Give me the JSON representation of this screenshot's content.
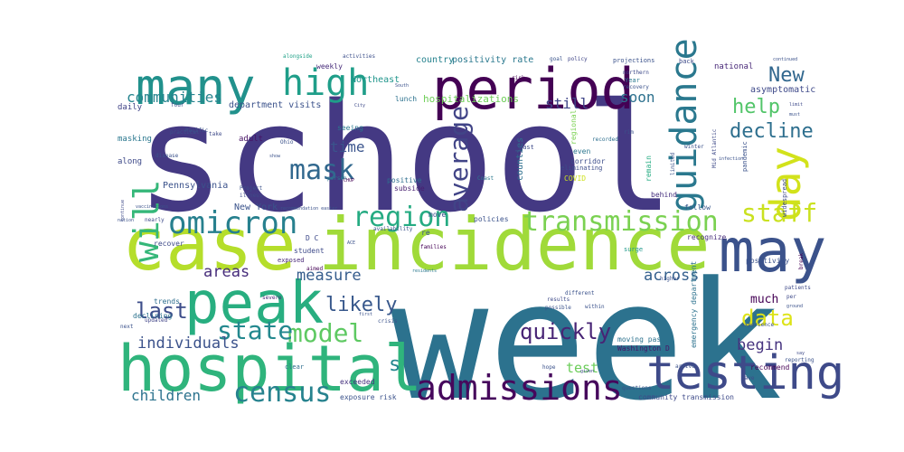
{
  "words": [
    {
      "text": "school",
      "color": "#443983"
    },
    {
      "text": "week",
      "color": "#2c728e"
    },
    {
      "text": "case",
      "color": "#b5de2b"
    },
    {
      "text": "incidence",
      "color": "#a0da39"
    },
    {
      "text": "hospital",
      "color": "#2fb47c"
    },
    {
      "text": "peak",
      "color": "#28ae80"
    },
    {
      "text": "period",
      "color": "#440154"
    },
    {
      "text": "many",
      "color": "#21918c"
    },
    {
      "text": "may",
      "color": "#3b528b"
    },
    {
      "text": "testing",
      "color": "#3e4a89"
    },
    {
      "text": "admissions",
      "color": "#46085c"
    },
    {
      "text": "transmission",
      "color": "#7ad151"
    },
    {
      "text": "guidance",
      "color": "#2a788e"
    },
    {
      "text": "will",
      "color": "#35b779"
    },
    {
      "text": "omicron",
      "color": "#27808e"
    },
    {
      "text": "high",
      "color": "#1f9e89"
    },
    {
      "text": "day",
      "color": "#d2e21b"
    },
    {
      "text": "mask",
      "color": "#31688e"
    },
    {
      "text": "average",
      "color": "#414487"
    },
    {
      "text": "region",
      "color": "#25ab82"
    },
    {
      "text": "census",
      "color": "#26828e"
    },
    {
      "text": "model",
      "color": "#5ec962"
    },
    {
      "text": "state",
      "color": "#23888e"
    },
    {
      "text": "staff",
      "color": "#cae11f"
    },
    {
      "text": "last",
      "color": "#3d4d8a"
    },
    {
      "text": "likely",
      "color": "#38588c"
    },
    {
      "text": "data",
      "color": "#dde318"
    },
    {
      "text": "New",
      "color": "#31678e"
    },
    {
      "text": "help",
      "color": "#52c569"
    },
    {
      "text": "decline",
      "color": "#2e6f8e"
    },
    {
      "text": "communities",
      "color": "#25848e"
    },
    {
      "text": "quickly",
      "color": "#482475"
    },
    {
      "text": "time",
      "color": "#3a548c"
    },
    {
      "text": "soon",
      "color": "#2d718e"
    },
    {
      "text": "still",
      "color": "#404688"
    },
    {
      "text": "individuals",
      "color": "#3b528b"
    },
    {
      "text": "children",
      "color": "#2c738e"
    },
    {
      "text": "measure",
      "color": "#365d8d"
    },
    {
      "text": "areas",
      "color": "#472d7b"
    },
    {
      "text": "across",
      "color": "#34608d"
    },
    {
      "text": "begin",
      "color": "#46337f"
    },
    {
      "text": "test",
      "color": "#6ccd5a"
    },
    {
      "text": "s",
      "color": "#24868e"
    },
    {
      "text": "much",
      "color": "#440154"
    },
    {
      "text": "positivity rate",
      "color": "#2a788e"
    },
    {
      "text": "hospitalizations",
      "color": "#6ece58"
    },
    {
      "text": "country",
      "color": "#26828e"
    },
    {
      "text": "department visits",
      "color": "#3b528b"
    },
    {
      "text": "communities",
      "color": "#25848e"
    },
    {
      "text": "Northeast",
      "color": "#1f958b"
    },
    {
      "text": "weekly",
      "color": "#472c7a"
    },
    {
      "text": "alongside",
      "color": "#1fa187"
    },
    {
      "text": "activities",
      "color": "#3c4f8a"
    },
    {
      "text": "national",
      "color": "#482878"
    },
    {
      "text": "asymptomatic",
      "color": "#3e4989"
    },
    {
      "text": "Pennsylvania",
      "color": "#3b528b"
    },
    {
      "text": "New York",
      "color": "#3a538b"
    },
    {
      "text": "omicron",
      "color": "#27808e"
    },
    {
      "text": "masking",
      "color": "#2a778e"
    },
    {
      "text": "adult",
      "color": "#471365"
    },
    {
      "text": "daily",
      "color": "#414487"
    },
    {
      "text": "along",
      "color": "#3e4a89"
    },
    {
      "text": "positive",
      "color": "#2e6e8e"
    },
    {
      "text": "subside",
      "color": "#481f70"
    },
    {
      "text": "lunch",
      "color": "#2c728e"
    },
    {
      "text": "counties",
      "color": "#2e6f8e"
    },
    {
      "text": "regional",
      "color": "#7ad151"
    },
    {
      "text": "corridor",
      "color": "#3d4e8a"
    },
    {
      "text": "eliminating",
      "color": "#3d4d8a"
    },
    {
      "text": "even",
      "color": "#2b758e"
    },
    {
      "text": "COVID",
      "color": "#cde11d"
    },
    {
      "text": "behind",
      "color": "#46307e"
    },
    {
      "text": "remain",
      "color": "#25ac82"
    },
    {
      "text": "follow",
      "color": "#38588c"
    },
    {
      "text": "recognize",
      "color": "#472d7b"
    },
    {
      "text": "surge",
      "color": "#1f988b"
    },
    {
      "text": "positivity",
      "color": "#3b528b"
    },
    {
      "text": "recommend",
      "color": "#440154"
    },
    {
      "text": "community transmission",
      "color": "#3e4a89"
    },
    {
      "text": "exposure risk",
      "color": "#3b528b"
    },
    {
      "text": "exceeded",
      "color": "#46307e"
    },
    {
      "text": "student",
      "color": "#3e4a89"
    },
    {
      "text": "recover",
      "color": "#3e4a89"
    },
    {
      "text": "trends",
      "color": "#2e6e8e"
    },
    {
      "text": "declining",
      "color": "#2c728e"
    },
    {
      "text": "severe",
      "color": "#482878"
    },
    {
      "text": "updated",
      "color": "#414487"
    },
    {
      "text": "move",
      "color": "#3b528b"
    },
    {
      "text": "policies",
      "color": "#3b528b"
    },
    {
      "text": "re",
      "color": "#3a548c"
    },
    {
      "text": "moving past",
      "color": "#2c728e"
    },
    {
      "text": "Washington D",
      "color": "#481567"
    },
    {
      "text": "emergency department",
      "color": "#2c728e"
    },
    {
      "text": "seeing",
      "color": "#2a788e"
    },
    {
      "text": "past",
      "color": "#3e4a89"
    },
    {
      "text": "recorded",
      "color": "#2e6f8e"
    },
    {
      "text": "rim",
      "color": "#3b528b"
    },
    {
      "text": "goal",
      "color": "#3a548c"
    },
    {
      "text": "policy",
      "color": "#404688"
    },
    {
      "text": "projections",
      "color": "#3b528b"
    },
    {
      "text": "back",
      "color": "#3e4a89"
    },
    {
      "text": "northern",
      "color": "#3e4a89"
    },
    {
      "text": "recovery",
      "color": "#3b528b"
    },
    {
      "text": "Year",
      "color": "#2a788e"
    },
    {
      "text": "Mid Atlantic",
      "color": "#3e4a89"
    },
    {
      "text": "pandemic",
      "color": "#3b528b"
    },
    {
      "text": "widespread",
      "color": "#3e4a89"
    },
    {
      "text": "continued",
      "color": "#3b528b"
    },
    {
      "text": "risk",
      "color": "#440154"
    },
    {
      "text": "South",
      "color": "#3b528b"
    },
    {
      "text": "Coast",
      "color": "#2a788e"
    },
    {
      "text": "practical",
      "color": "#3b528b"
    },
    {
      "text": "four",
      "color": "#3e4a89"
    },
    {
      "text": "Ohio",
      "color": "#3b528b"
    },
    {
      "text": "City",
      "color": "#3e4a89"
    },
    {
      "text": "Pacific",
      "color": "#3b528b"
    },
    {
      "text": "take",
      "color": "#3e4a89"
    },
    {
      "text": "disease",
      "color": "#3b528b"
    },
    {
      "text": "show",
      "color": "#3b528b"
    },
    {
      "text": "Project",
      "color": "#3b528b"
    },
    {
      "text": "illness",
      "color": "#3e4a89"
    },
    {
      "text": "person",
      "color": "#2a788e"
    },
    {
      "text": "CHOP",
      "color": "#440154"
    },
    {
      "text": "recommendation easier",
      "color": "#3b528b"
    },
    {
      "text": "nearly",
      "color": "#3e4a89"
    },
    {
      "text": "nation",
      "color": "#3b528b"
    },
    {
      "text": "continue",
      "color": "#3e4a89"
    },
    {
      "text": "vaccinations",
      "color": "#3b528b"
    },
    {
      "text": "exposed",
      "color": "#482878"
    },
    {
      "text": "aimed",
      "color": "#440154"
    },
    {
      "text": "ACE",
      "color": "#3b528b"
    },
    {
      "text": "availability",
      "color": "#3b528b"
    },
    {
      "text": "families",
      "color": "#440154"
    },
    {
      "text": "residents",
      "color": "#2a788e"
    },
    {
      "text": "first",
      "color": "#3b528b"
    },
    {
      "text": "crisis",
      "color": "#3b528b"
    },
    {
      "text": "results",
      "color": "#3e4a89"
    },
    {
      "text": "possible",
      "color": "#3b528b"
    },
    {
      "text": "within",
      "color": "#3b528b"
    },
    {
      "text": "different",
      "color": "#3b528b"
    },
    {
      "text": "hope",
      "color": "#3b528b"
    },
    {
      "text": "given",
      "color": "#3e4a89"
    },
    {
      "text": "questions",
      "color": "#3b528b"
    },
    {
      "text": "clear",
      "color": "#2e6e8e"
    },
    {
      "text": "next",
      "color": "#3b528b"
    },
    {
      "text": "experience",
      "color": "#3b528b"
    },
    {
      "text": "patients",
      "color": "#3e4a89"
    },
    {
      "text": "ground",
      "color": "#3b528b"
    },
    {
      "text": "per",
      "color": "#3e4a89"
    },
    {
      "text": "break",
      "color": "#440154"
    },
    {
      "text": "arrive",
      "color": "#3b528b"
    },
    {
      "text": "wave",
      "color": "#3e4a89"
    },
    {
      "text": "higher",
      "color": "#3b528b"
    },
    {
      "text": "say",
      "color": "#3e4a89"
    },
    {
      "text": "reporting",
      "color": "#3b528b"
    },
    {
      "text": "winter",
      "color": "#3b528b"
    },
    {
      "text": "limited",
      "color": "#3b528b"
    },
    {
      "text": "infection",
      "color": "#3b528b"
    },
    {
      "text": "must",
      "color": "#3b528b"
    },
    {
      "text": "limit",
      "color": "#3e4a89"
    },
    {
      "text": "D C",
      "color": "#3e4a89"
    }
  ]
}
